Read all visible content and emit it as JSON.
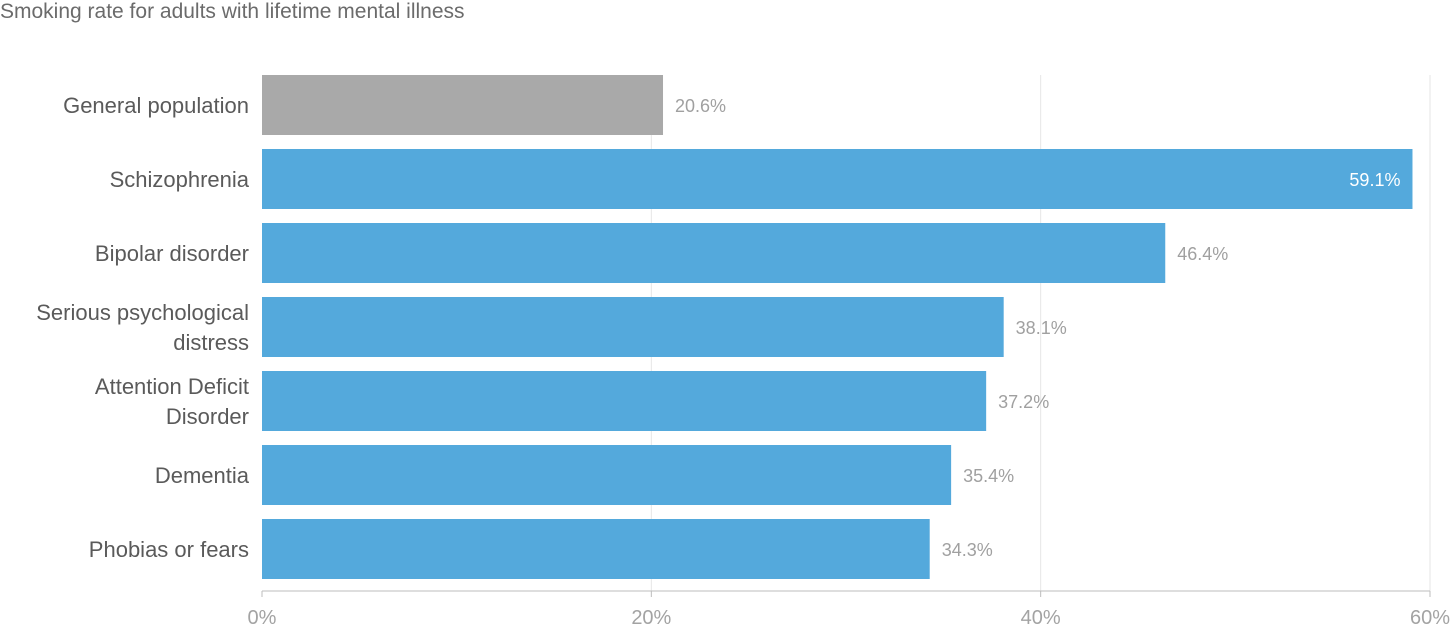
{
  "chart_data": {
    "type": "bar",
    "orientation": "horizontal",
    "title": "Smoking rate for adults with lifetime mental illness",
    "xlabel": "",
    "ylabel": "",
    "xlim": [
      0,
      60
    ],
    "x_ticks": [
      0,
      20,
      40,
      60
    ],
    "x_tick_labels": [
      "0%",
      "20%",
      "40%",
      "60%"
    ],
    "value_suffix": "%",
    "grid": true,
    "legend": "none",
    "categories": [
      "General population",
      "Schizophrenia",
      "Bipolar disorder",
      "Serious psychological distress",
      "Attention Deficit Disorder",
      "Dementia",
      "Phobias or fears"
    ],
    "category_label_lines": [
      [
        "General population"
      ],
      [
        "Schizophrenia"
      ],
      [
        "Bipolar disorder"
      ],
      [
        "Serious psychological",
        "distress"
      ],
      [
        "Attention Deficit",
        "Disorder"
      ],
      [
        "Dementia"
      ],
      [
        "Phobias or fears"
      ]
    ],
    "values": [
      20.6,
      59.1,
      46.4,
      38.1,
      37.2,
      35.4,
      34.3
    ],
    "value_labels": [
      "20.6%",
      "59.1%",
      "46.4%",
      "38.1%",
      "37.2%",
      "35.4%",
      "34.3%"
    ],
    "colors": {
      "reference_bar": "#a9a9a9",
      "bar": "#54a9dc",
      "grid": "#e6e6e6",
      "axis": "#bdbdbd",
      "value_label_outside": "#a0a0a0",
      "value_label_inside": "#ffffff"
    },
    "highlighted_categories": [
      "General population"
    ]
  }
}
